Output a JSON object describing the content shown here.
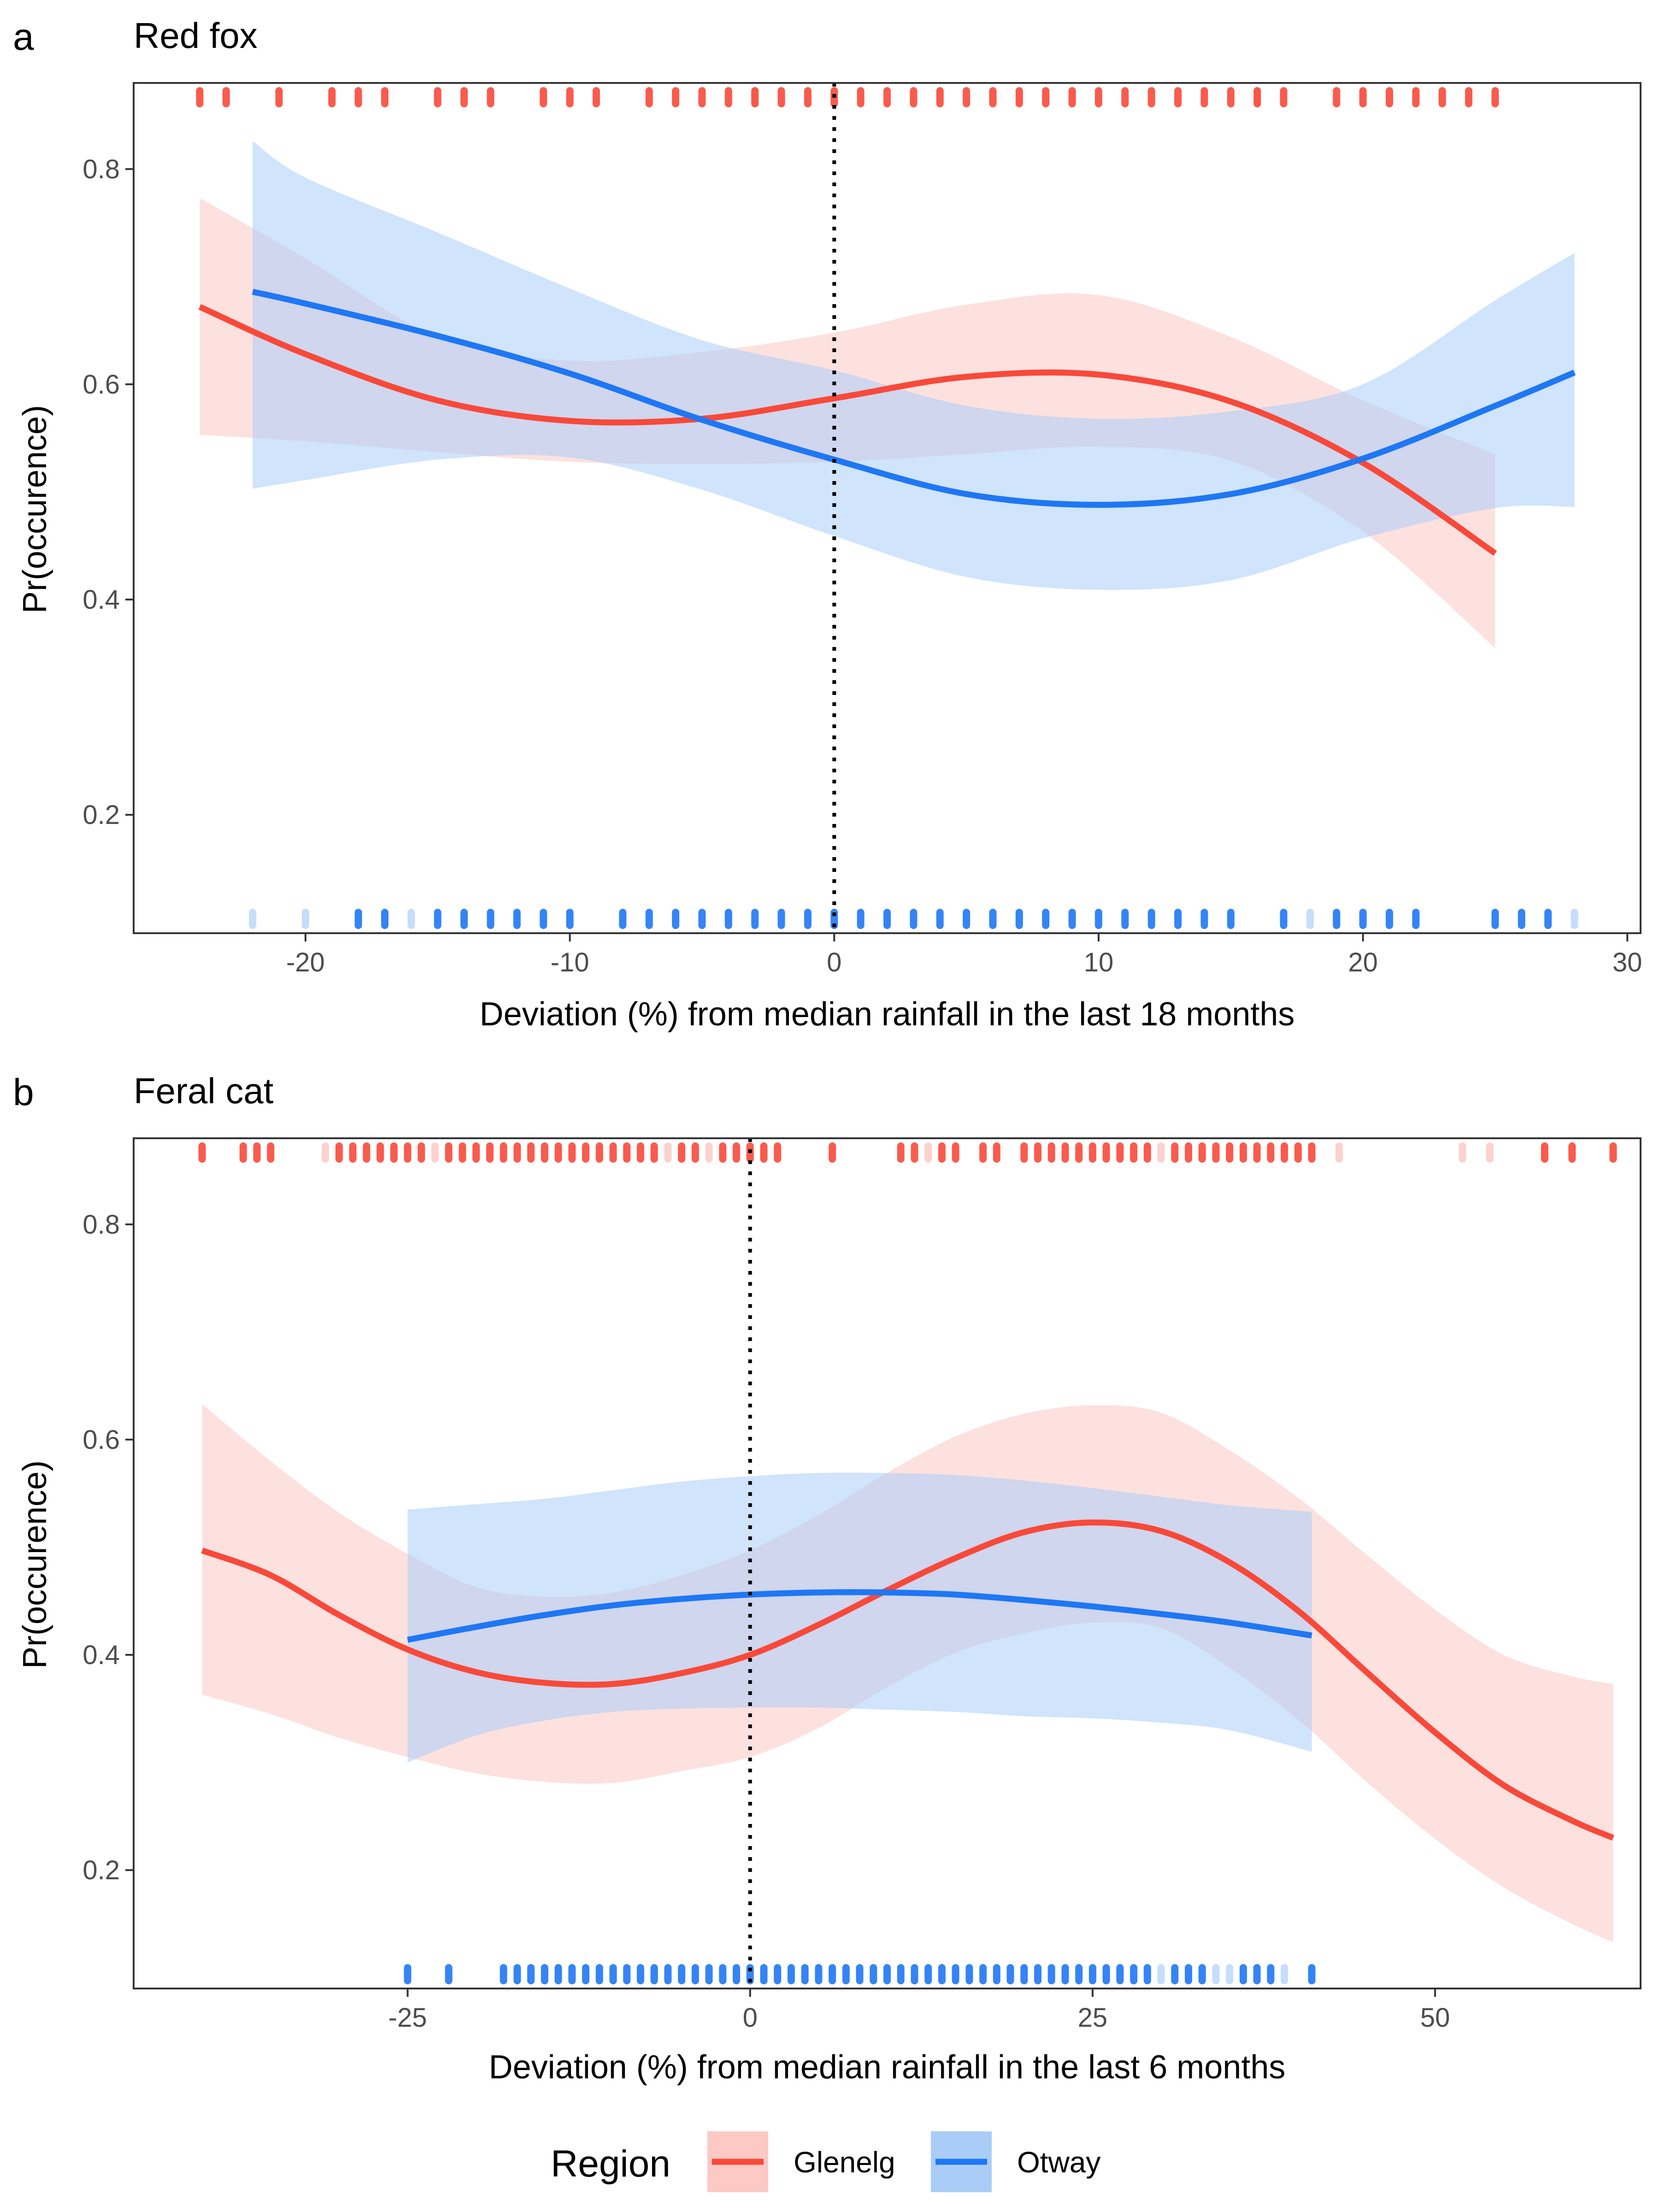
{
  "colors": {
    "glenelg": "#F8493A",
    "otway": "#1F77F4",
    "glenelg_band": "#FCC9C4",
    "otway_band": "#A9CDF7"
  },
  "chart_data": [
    {
      "type": "line",
      "panel_letter": "a",
      "title": "Red fox",
      "xlabel": "Deviation (%) from median rainfall in the last 18 months",
      "ylabel": "Pr(occurence)",
      "xlim": [
        -26.5,
        30.5
      ],
      "ylim": [
        0.09,
        0.88
      ],
      "xticks": [
        -20,
        -10,
        0,
        10,
        20,
        30
      ],
      "xtick_labels": [
        "-20",
        "-10",
        "0",
        "10",
        "20",
        "30"
      ],
      "yticks": [
        0.2,
        0.4,
        0.6,
        0.8
      ],
      "ytick_labels": [
        "0.2",
        "0.4",
        "0.6",
        "0.8"
      ],
      "vline_x": 0,
      "grid": false,
      "series": [
        {
          "name": "Glenelg",
          "color_key": "glenelg",
          "x": [
            -24,
            -20,
            -15,
            -10,
            -5,
            0,
            5,
            10,
            15,
            20,
            25
          ],
          "y": [
            0.672,
            0.628,
            0.585,
            0.566,
            0.568,
            0.587,
            0.607,
            0.609,
            0.584,
            0.527,
            0.443
          ],
          "lower": [
            0.553,
            0.547,
            0.537,
            0.528,
            0.526,
            0.528,
            0.535,
            0.542,
            0.529,
            0.463,
            0.355
          ],
          "upper": [
            0.773,
            0.717,
            0.644,
            0.622,
            0.63,
            0.648,
            0.674,
            0.683,
            0.644,
            0.585,
            0.535
          ],
          "rug_occurrence_x": [
            -24,
            -23,
            -21,
            -19,
            -18,
            -17,
            -15,
            -14,
            -13,
            -11,
            -10,
            -9,
            -7,
            -6,
            -5,
            -4,
            -3,
            -2,
            -1,
            0,
            1,
            2,
            3,
            4,
            5,
            6,
            7,
            8,
            9,
            10,
            11,
            12,
            13,
            14,
            15,
            16,
            17,
            19,
            20,
            21,
            22,
            23,
            24,
            25
          ],
          "rug_occurrence_faint_x": [
            -3,
            16
          ]
        },
        {
          "name": "Otway",
          "color_key": "otway",
          "x": [
            -22,
            -20,
            -15,
            -10,
            -5,
            0,
            5,
            10,
            15,
            20,
            25,
            28
          ],
          "y": [
            0.686,
            0.675,
            0.645,
            0.61,
            0.567,
            0.53,
            0.498,
            0.488,
            0.498,
            0.531,
            0.58,
            0.611
          ],
          "lower": [
            0.503,
            0.511,
            0.53,
            0.532,
            0.502,
            0.459,
            0.421,
            0.409,
            0.418,
            0.457,
            0.485,
            0.486
          ],
          "upper": [
            0.826,
            0.792,
            0.741,
            0.689,
            0.641,
            0.613,
            0.58,
            0.568,
            0.575,
            0.6,
            0.678,
            0.722
          ],
          "rug_absence_x": [
            -18,
            -17,
            -15,
            -14,
            -13,
            -12,
            -11,
            -10,
            -8,
            -7,
            -6,
            -5,
            -4,
            -3,
            -2,
            -1,
            0,
            1,
            2,
            3,
            4,
            5,
            6,
            7,
            8,
            9,
            10,
            11,
            12,
            13,
            14,
            15,
            17,
            19,
            20,
            21,
            22,
            25,
            26,
            27
          ],
          "rug_absence_faint_x": [
            -22,
            -20,
            -16,
            18,
            28
          ]
        }
      ]
    },
    {
      "type": "line",
      "panel_letter": "b",
      "title": "Feral cat",
      "xlabel": "Deviation (%) from median rainfall in the last 6 months",
      "ylabel": "Pr(occurence)",
      "xlim": [
        -45,
        65
      ],
      "ylim": [
        0.09,
        0.88
      ],
      "xticks": [
        -25,
        0,
        25,
        50
      ],
      "xtick_labels": [
        "-25",
        "0",
        "25",
        "50"
      ],
      "yticks": [
        0.2,
        0.4,
        0.6,
        0.8
      ],
      "ytick_labels": [
        "0.2",
        "0.4",
        "0.6",
        "0.8"
      ],
      "vline_x": 0,
      "grid": false,
      "series": [
        {
          "name": "Glenelg",
          "color_key": "glenelg",
          "x": [
            -40,
            -35,
            -30,
            -25,
            -20,
            -15,
            -10,
            -5,
            0,
            5,
            10,
            15,
            20,
            25,
            30,
            35,
            40,
            45,
            50,
            55,
            60,
            63
          ],
          "y": [
            0.497,
            0.474,
            0.437,
            0.405,
            0.384,
            0.374,
            0.373,
            0.383,
            0.4,
            0.428,
            0.46,
            0.49,
            0.514,
            0.523,
            0.515,
            0.486,
            0.441,
            0.384,
            0.328,
            0.279,
            0.246,
            0.23
          ],
          "lower": [
            0.363,
            0.345,
            0.323,
            0.305,
            0.29,
            0.282,
            0.281,
            0.292,
            0.305,
            0.332,
            0.37,
            0.402,
            0.42,
            0.43,
            0.425,
            0.388,
            0.34,
            0.282,
            0.229,
            0.184,
            0.15,
            0.133
          ],
          "upper": [
            0.633,
            0.58,
            0.532,
            0.494,
            0.463,
            0.454,
            0.458,
            0.474,
            0.497,
            0.53,
            0.569,
            0.603,
            0.624,
            0.632,
            0.625,
            0.59,
            0.546,
            0.493,
            0.442,
            0.4,
            0.38,
            0.373
          ],
          "rug_occurrence_x": [
            -40,
            -37,
            -36,
            -35,
            -30,
            -29,
            -28,
            -27,
            -26,
            -25,
            -24,
            -22,
            -21,
            -20,
            -19,
            -18,
            -17,
            -16,
            -15,
            -14,
            -13,
            -12,
            -11,
            -10,
            -9,
            -8,
            -7,
            -5,
            -4,
            -2,
            -1,
            0,
            1,
            2,
            6,
            11,
            12,
            14,
            15,
            17,
            18,
            20,
            21,
            22,
            23,
            24,
            25,
            26,
            27,
            28,
            29,
            31,
            32,
            33,
            34,
            35,
            36,
            37,
            38,
            39,
            40,
            41,
            58,
            60,
            63
          ],
          "rug_occurrence_faint_x": [
            -31,
            -23,
            -6,
            -3,
            13,
            30,
            43,
            52,
            54
          ]
        },
        {
          "name": "Otway",
          "color_key": "otway",
          "x": [
            -25,
            -20,
            -15,
            -10,
            -5,
            0,
            5,
            10,
            15,
            20,
            25,
            30,
            35,
            41
          ],
          "y": [
            0.414,
            0.426,
            0.437,
            0.446,
            0.452,
            0.456,
            0.458,
            0.458,
            0.456,
            0.451,
            0.445,
            0.438,
            0.43,
            0.418
          ],
          "lower": [
            0.3,
            0.325,
            0.339,
            0.347,
            0.35,
            0.351,
            0.351,
            0.349,
            0.347,
            0.343,
            0.341,
            0.337,
            0.33,
            0.31
          ],
          "upper": [
            0.535,
            0.54,
            0.545,
            0.553,
            0.561,
            0.566,
            0.569,
            0.569,
            0.567,
            0.562,
            0.555,
            0.547,
            0.539,
            0.533
          ],
          "rug_absence_x": [
            -25,
            -22,
            -18,
            -17,
            -16,
            -15,
            -14,
            -13,
            -12,
            -11,
            -10,
            -9,
            -8,
            -7,
            -6,
            -5,
            -4,
            -3,
            -2,
            -1,
            0,
            1,
            2,
            3,
            4,
            5,
            6,
            7,
            8,
            9,
            10,
            11,
            12,
            13,
            14,
            15,
            16,
            17,
            18,
            19,
            20,
            21,
            22,
            23,
            24,
            25,
            26,
            27,
            28,
            29,
            31,
            32,
            33,
            36,
            37,
            38,
            41
          ],
          "rug_absence_faint_x": [
            30,
            34,
            35,
            39
          ]
        }
      ]
    }
  ],
  "legend": {
    "title": "Region",
    "items": [
      {
        "label": "Glenelg",
        "color_key": "glenelg"
      },
      {
        "label": "Otway",
        "color_key": "otway"
      }
    ]
  }
}
